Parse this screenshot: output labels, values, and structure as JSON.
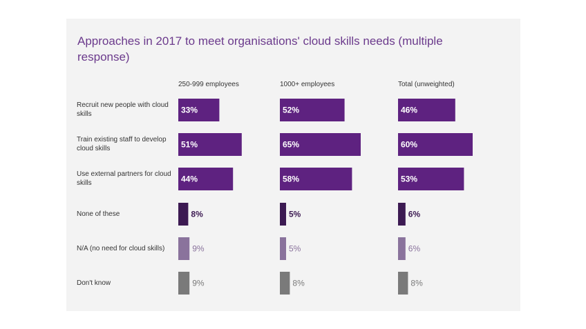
{
  "chart_data": {
    "type": "bar",
    "title": "Approaches in 2017 to meet organisations' cloud skills needs (multiple response)",
    "columns": [
      "250-999 employees",
      "1000+ employees",
      "Total (unweighted)"
    ],
    "rows": [
      {
        "label": "Recruit new people with cloud skills",
        "values": [
          33,
          52,
          46
        ],
        "color": "#5e2280",
        "label_color": "#ffffff",
        "label_inside": true
      },
      {
        "label": "Train existing staff to develop cloud skills",
        "values": [
          51,
          65,
          60
        ],
        "color": "#5e2280",
        "label_color": "#ffffff",
        "label_inside": true
      },
      {
        "label": "Use external partners for cloud skills",
        "values": [
          44,
          58,
          53
        ],
        "color": "#5e2280",
        "label_color": "#ffffff",
        "label_inside": true
      },
      {
        "label": "None of these",
        "values": [
          8,
          5,
          6
        ],
        "color": "#3c1a52",
        "label_color": "#3c1a52",
        "label_inside": false
      },
      {
        "label": "N/A (no need for cloud skills)",
        "values": [
          9,
          5,
          6
        ],
        "color": "#8a739c",
        "label_color": "#8a739c",
        "label_inside": false
      },
      {
        "label": "Don't know",
        "values": [
          9,
          8,
          8
        ],
        "color": "#7a7a7a",
        "label_color": "#7a7a7a",
        "label_inside": false
      }
    ],
    "value_suffix": "%"
  }
}
